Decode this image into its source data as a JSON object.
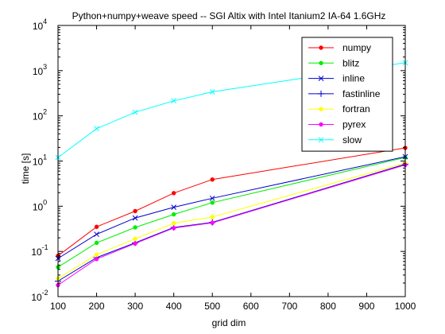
{
  "chart_data": {
    "type": "line",
    "title": "Python+numpy+weave speed -- SGI Altix with Intel Itanium2 IA-64 1.6GHz",
    "xlabel": "grid dim",
    "ylabel": "time [s]",
    "xlim": [
      100,
      1000
    ],
    "ylim": [
      0.01,
      10000
    ],
    "yscale": "log",
    "grid": false,
    "legend_position": "top-right",
    "x_ticks": [
      "100",
      "200",
      "300",
      "400",
      "500",
      "600",
      "700",
      "800",
      "900",
      "1000"
    ],
    "y_ticks": [
      {
        "base": "10",
        "exp": "-2"
      },
      {
        "base": "10",
        "exp": "-1"
      },
      {
        "base": "10",
        "exp": "0"
      },
      {
        "base": "10",
        "exp": "1"
      },
      {
        "base": "10",
        "exp": "2"
      },
      {
        "base": "10",
        "exp": "3"
      },
      {
        "base": "10",
        "exp": "4"
      }
    ],
    "x": [
      100,
      200,
      300,
      400,
      500,
      1000
    ],
    "series": [
      {
        "name": "numpy",
        "color": "#ff0000",
        "marker": "dot",
        "values": [
          0.08,
          0.35,
          0.78,
          1.95,
          3.9,
          19.5
        ]
      },
      {
        "name": "blitz",
        "color": "#00ee00",
        "marker": "dot",
        "values": [
          0.045,
          0.155,
          0.34,
          0.66,
          1.2,
          12.0
        ]
      },
      {
        "name": "inline",
        "color": "#0000cc",
        "marker": "x",
        "values": [
          0.07,
          0.24,
          0.55,
          0.95,
          1.5,
          12.5
        ]
      },
      {
        "name": "fastinline",
        "color": "#0000cc",
        "marker": "plus",
        "values": [
          0.022,
          0.073,
          0.155,
          0.34,
          0.44,
          8.5
        ]
      },
      {
        "name": "fortran",
        "color": "#ffff00",
        "marker": "dot",
        "values": [
          0.025,
          0.085,
          0.19,
          0.42,
          0.58,
          9.0
        ]
      },
      {
        "name": "pyrex",
        "color": "#ff00ff",
        "marker": "dot",
        "values": [
          0.018,
          0.068,
          0.15,
          0.33,
          0.43,
          8.2
        ]
      },
      {
        "name": "slow",
        "color": "#00ffff",
        "marker": "x",
        "values": [
          12.0,
          52.0,
          120.0,
          215.0,
          340.0,
          1500.0
        ]
      }
    ]
  }
}
